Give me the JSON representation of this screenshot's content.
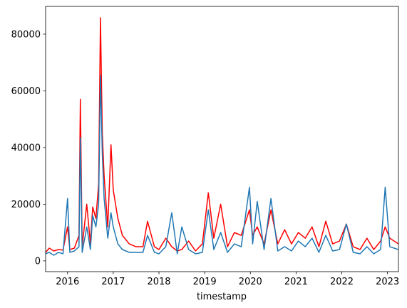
{
  "chart_data": {
    "type": "line",
    "x_label": "timestamp",
    "x": [
      2015.52,
      2015.6,
      2015.7,
      2015.8,
      2015.9,
      2016.0,
      2016.05,
      2016.15,
      2016.25,
      2016.28,
      2016.32,
      2016.42,
      2016.5,
      2016.55,
      2016.62,
      2016.68,
      2016.72,
      2016.76,
      2016.8,
      2016.88,
      2016.95,
      2017.0,
      2017.1,
      2017.2,
      2017.35,
      2017.5,
      2017.65,
      2017.75,
      2017.9,
      2018.0,
      2018.15,
      2018.28,
      2018.4,
      2018.5,
      2018.65,
      2018.8,
      2018.95,
      2019.08,
      2019.2,
      2019.35,
      2019.5,
      2019.65,
      2019.8,
      2019.98,
      2020.05,
      2020.15,
      2020.3,
      2020.45,
      2020.6,
      2020.75,
      2020.9,
      2021.05,
      2021.2,
      2021.35,
      2021.5,
      2021.65,
      2021.8,
      2021.95,
      2022.1,
      2022.25,
      2022.4,
      2022.55,
      2022.7,
      2022.85,
      2022.95,
      2023.05,
      2023.24
    ],
    "series": [
      {
        "color": "#ff0000",
        "values": [
          3000,
          4500,
          3500,
          4000,
          3800,
          12000,
          4000,
          4500,
          9000,
          57000,
          5000,
          20000,
          6000,
          19000,
          15000,
          27000,
          85800,
          45000,
          30000,
          12000,
          41000,
          25000,
          15000,
          9000,
          6000,
          5000,
          5000,
          14000,
          5000,
          4000,
          8000,
          5000,
          3500,
          4000,
          7000,
          3500,
          6000,
          24000,
          8000,
          20000,
          5000,
          10000,
          9000,
          18000,
          9000,
          12000,
          6000,
          18000,
          6000,
          11000,
          6000,
          10000,
          8000,
          12000,
          5000,
          14000,
          6000,
          7000,
          13000,
          5000,
          4000,
          8000,
          4000,
          7000,
          12000,
          8000,
          6000
        ]
      },
      {
        "color": "#1f77b4",
        "values": [
          2500,
          3000,
          2000,
          3000,
          2500,
          22000,
          3000,
          3500,
          5000,
          43500,
          3000,
          12000,
          4000,
          16000,
          12000,
          20000,
          65500,
          38000,
          22000,
          8000,
          17000,
          12000,
          6000,
          4000,
          3000,
          3000,
          3000,
          9000,
          3000,
          2500,
          5000,
          17000,
          2500,
          12000,
          4000,
          2500,
          3000,
          18000,
          4000,
          10000,
          3000,
          6000,
          5000,
          26000,
          6000,
          21000,
          4000,
          22000,
          3500,
          5000,
          3500,
          7000,
          5000,
          8000,
          3000,
          9000,
          3500,
          4000,
          13000,
          3000,
          2500,
          5000,
          2500,
          4000,
          26000,
          5000,
          4000
        ]
      }
    ],
    "xlim": [
      2015.52,
      2023.24
    ],
    "xticks": [
      2016,
      2017,
      2018,
      2019,
      2020,
      2021,
      2022,
      2023
    ],
    "ylim": [
      -3800,
      89800
    ],
    "yticks": [
      0,
      20000,
      40000,
      60000,
      80000
    ]
  }
}
